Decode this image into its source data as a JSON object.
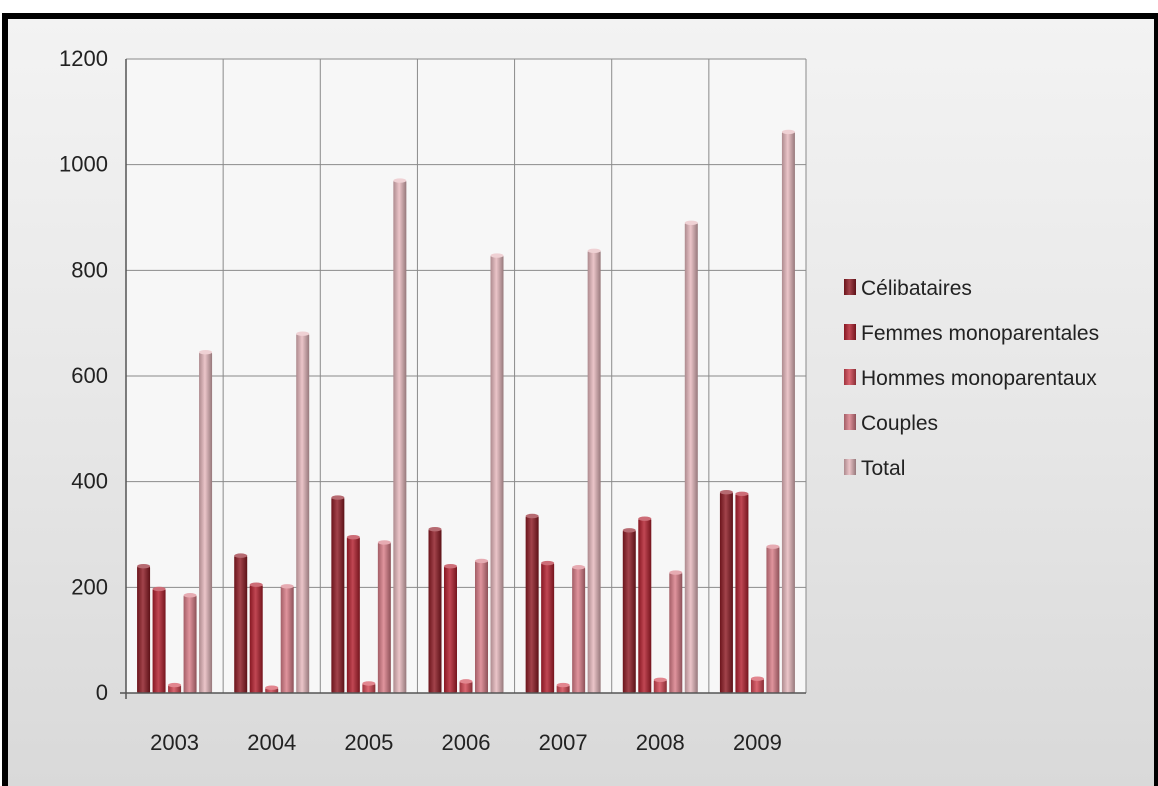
{
  "chart_data": {
    "type": "bar",
    "title": "",
    "xlabel": "",
    "ylabel": "",
    "categories": [
      "2003",
      "2004",
      "2005",
      "2006",
      "2007",
      "2008",
      "2009"
    ],
    "ylim": [
      0,
      1200
    ],
    "yticks": [
      "0",
      "200",
      "400",
      "600",
      "800",
      "1000",
      "1200"
    ],
    "grid": true,
    "legend_position": "right",
    "series": [
      {
        "name": "Célibataires",
        "color": "#8e1a24",
        "values": [
          240,
          260,
          370,
          310,
          335,
          308,
          380
        ]
      },
      {
        "name": "Femmes monoparentales",
        "color": "#b21f2d",
        "values": [
          197,
          205,
          295,
          240,
          246,
          330,
          377
        ]
      },
      {
        "name": "Hommes monoparentaux",
        "color": "#d24552",
        "values": [
          15,
          10,
          18,
          22,
          15,
          25,
          27
        ]
      },
      {
        "name": "Couples",
        "color": "#d97d88",
        "values": [
          185,
          202,
          285,
          250,
          238,
          228,
          277
        ]
      },
      {
        "name": "Total",
        "color": "#e7b8bd",
        "values": [
          645,
          680,
          970,
          828,
          837,
          890,
          1062
        ]
      }
    ]
  }
}
